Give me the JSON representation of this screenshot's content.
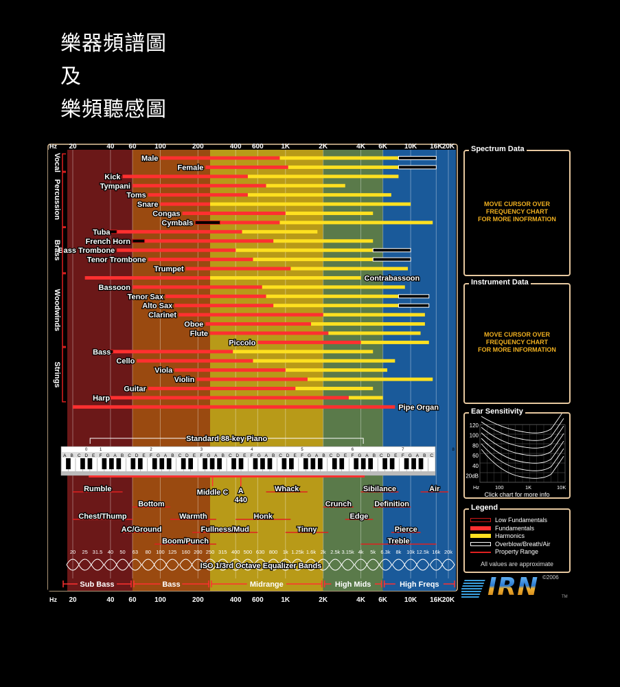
{
  "page_headings": [
    "樂器頻譜圖",
    "及",
    "樂頻聽感圖"
  ],
  "colors": {
    "low_fundamental": "#d01818",
    "fundamental": "#ff3030",
    "harmonic": "#ffe020",
    "overblow": "#000000",
    "property_range": "#e02020",
    "band_sub_bass": "#6b1818",
    "band_bass": "#9a4a10",
    "band_midrange": "#b89a18",
    "band_high_mids": "#5a7a4a",
    "band_high_freqs": "#1a5a9a",
    "panel_border": "#e8c9a0",
    "panel_msg": "#f0b020"
  },
  "chart_data": {
    "type": "bar",
    "title": "",
    "x_scale": "log",
    "xlabel": "Hz",
    "xlim": [
      20,
      20000
    ],
    "top_ticks": [
      {
        "hz": 20,
        "label": "20"
      },
      {
        "hz": 40,
        "label": "40"
      },
      {
        "hz": 60,
        "label": "60"
      },
      {
        "hz": 100,
        "label": "100"
      },
      {
        "hz": 200,
        "label": "200"
      },
      {
        "hz": 400,
        "label": "400"
      },
      {
        "hz": 600,
        "label": "600"
      },
      {
        "hz": 1000,
        "label": "1K"
      },
      {
        "hz": 2000,
        "label": "2K"
      },
      {
        "hz": 4000,
        "label": "4K"
      },
      {
        "hz": 6000,
        "label": "6K"
      },
      {
        "hz": 10000,
        "label": "10K"
      },
      {
        "hz": 16000,
        "label": "16K"
      },
      {
        "hz": 20000,
        "label": "20K"
      }
    ],
    "hz_label": "Hz",
    "groups": [
      {
        "name": "Vocal",
        "from": 0,
        "to": 1
      },
      {
        "name": "Percussion",
        "from": 2,
        "to": 7
      },
      {
        "name": "Brass",
        "from": 8,
        "to": 12
      },
      {
        "name": "Woodwinds",
        "from": 13,
        "to": 20
      },
      {
        "name": "Strings",
        "from": 21,
        "to": 26
      }
    ],
    "instruments": [
      {
        "name": "Male",
        "fund": [
          100,
          900
        ],
        "harm": [
          900,
          8000
        ],
        "over": [
          8000,
          16000
        ]
      },
      {
        "name": "Female",
        "fund": [
          230,
          1050
        ],
        "harm": [
          1050,
          8000
        ],
        "over": [
          8000,
          16000
        ]
      },
      {
        "name": "Kick",
        "fund": [
          50,
          500
        ],
        "harm": [
          500,
          8000
        ]
      },
      {
        "name": "Tympani",
        "fund": [
          60,
          700
        ],
        "harm": [
          700,
          3000
        ]
      },
      {
        "name": "Toms",
        "fund": [
          80,
          500
        ],
        "harm": [
          500,
          7000
        ]
      },
      {
        "name": "Snare",
        "fund": [
          100,
          250
        ],
        "harm": [
          250,
          10000
        ]
      },
      {
        "name": "Congas",
        "fund": [
          150,
          1000
        ],
        "harm": [
          1000,
          5000
        ]
      },
      {
        "name": "Cymbals",
        "low": [
          190,
          300
        ],
        "fund": [
          300,
          900
        ],
        "harm": [
          900,
          15000
        ]
      },
      {
        "name": "Tuba",
        "low": [
          30,
          45
        ],
        "fund": [
          45,
          450
        ],
        "harm": [
          450,
          1800
        ]
      },
      {
        "name": "French Horn",
        "low": [
          60,
          75
        ],
        "fund": [
          75,
          800
        ],
        "harm": [
          800,
          5000
        ]
      },
      {
        "name": "Bass Trombone",
        "fund": [
          45,
          400
        ],
        "harm": [
          400,
          5000
        ],
        "over": [
          5000,
          10000
        ]
      },
      {
        "name": "Tenor Trombone",
        "fund": [
          80,
          550
        ],
        "harm": [
          550,
          5000
        ],
        "over": [
          5000,
          10000
        ]
      },
      {
        "name": "Trumpet",
        "fund": [
          160,
          1100
        ],
        "harm": [
          1100,
          9500
        ]
      },
      {
        "name": "Contrabassoon",
        "fund": [
          25,
          250
        ],
        "harm": [
          250,
          4000
        ]
      },
      {
        "name": "Bassoon",
        "fund": [
          60,
          650
        ],
        "harm": [
          650,
          9000
        ]
      },
      {
        "name": "Tenor Sax",
        "fund": [
          110,
          700
        ],
        "harm": [
          700,
          8000
        ],
        "over": [
          8000,
          14000
        ]
      },
      {
        "name": "Alto Sax",
        "fund": [
          130,
          800
        ],
        "harm": [
          800,
          8000
        ],
        "over": [
          8000,
          14000
        ]
      },
      {
        "name": "Clarinet",
        "fund": [
          140,
          2000
        ],
        "harm": [
          2000,
          13000
        ]
      },
      {
        "name": "Oboe",
        "fund": [
          230,
          1600
        ],
        "harm": [
          1600,
          13000
        ]
      },
      {
        "name": "Flute",
        "fund": [
          250,
          2200
        ],
        "harm": [
          2200,
          12000
        ]
      },
      {
        "name": "Piccolo",
        "fund": [
          600,
          4000
        ],
        "harm": [
          4000,
          14000
        ]
      },
      {
        "name": "Bass",
        "low": [
          30,
          42
        ],
        "fund": [
          42,
          380
        ],
        "harm": [
          380,
          5000
        ]
      },
      {
        "name": "Cello",
        "fund": [
          65,
          550
        ],
        "harm": [
          550,
          7500
        ]
      },
      {
        "name": "Viola",
        "fund": [
          130,
          1000
        ],
        "harm": [
          1000,
          6500
        ]
      },
      {
        "name": "Violin",
        "fund": [
          195,
          1500
        ],
        "harm": [
          1500,
          15000
        ]
      },
      {
        "name": "Guitar",
        "fund": [
          80,
          1200
        ],
        "harm": [
          1200,
          5000
        ]
      },
      {
        "name": "Harp",
        "fund": [
          30,
          3200
        ],
        "harm": [
          3200,
          6000
        ]
      },
      {
        "name": "Pipe Organ",
        "fund": [
          20,
          7500
        ]
      }
    ],
    "piano": {
      "label": "Standard 88-key Piano",
      "range": [
        27.5,
        4186
      ],
      "octave_numbers": [
        "0",
        "1",
        "2",
        "3",
        "4",
        "5",
        "6",
        "7",
        "8"
      ],
      "note_letters": [
        "C",
        "D",
        "E",
        "F",
        "G",
        "A",
        "B"
      ]
    },
    "markers": [
      {
        "label": "Middle C",
        "hz": 261.6
      },
      {
        "label": "A",
        "sub": "440",
        "hz": 440
      }
    ],
    "perception": [
      {
        "label": "Rumble",
        "range": [
          20,
          50
        ],
        "row": 0
      },
      {
        "label": "Chest/Thump",
        "range": [
          20,
          60
        ],
        "row": 2
      },
      {
        "label": "Bottom",
        "range": [
          60,
          120
        ],
        "row": 1
      },
      {
        "label": "AC/Ground",
        "range": [
          50,
          100
        ],
        "row": 3
      },
      {
        "label": "Warmth",
        "range": [
          120,
          280
        ],
        "row": 2
      },
      {
        "label": "Boom/Punch",
        "range": [
          90,
          280
        ],
        "row": 4
      },
      {
        "label": "Fullness/Mud",
        "range": [
          180,
          600
        ],
        "row": 3
      },
      {
        "label": "Honk",
        "range": [
          400,
          1100
        ],
        "row": 2
      },
      {
        "label": "Whack",
        "range": [
          700,
          1500
        ],
        "row": 0
      },
      {
        "label": "Tinny",
        "range": [
          1000,
          2200
        ],
        "row": 3
      },
      {
        "label": "Crunch",
        "range": [
          2000,
          3500
        ],
        "row": 1
      },
      {
        "label": "Edge",
        "range": [
          3000,
          5000
        ],
        "row": 2
      },
      {
        "label": "Sibilance",
        "range": [
          4000,
          8000
        ],
        "row": 0
      },
      {
        "label": "Definition",
        "range": [
          5000,
          10000
        ],
        "row": 1
      },
      {
        "label": "Pierce",
        "range": [
          7000,
          12000
        ],
        "row": 3
      },
      {
        "label": "Treble",
        "range": [
          4000,
          16000
        ],
        "row": 4
      },
      {
        "label": "Air",
        "range": [
          12000,
          20000
        ],
        "row": 0
      }
    ],
    "iso_label": "ISO 1/3rd Octave Equalizer Bands",
    "iso_bands": [
      {
        "hz": 20,
        "label": "20"
      },
      {
        "hz": 25,
        "label": "25"
      },
      {
        "hz": 31.5,
        "label": "31.5"
      },
      {
        "hz": 40,
        "label": "40"
      },
      {
        "hz": 50,
        "label": "50"
      },
      {
        "hz": 63,
        "label": "63"
      },
      {
        "hz": 80,
        "label": "80"
      },
      {
        "hz": 100,
        "label": "100"
      },
      {
        "hz": 125,
        "label": "125"
      },
      {
        "hz": 160,
        "label": "160"
      },
      {
        "hz": 200,
        "label": "200"
      },
      {
        "hz": 250,
        "label": "250"
      },
      {
        "hz": 315,
        "label": "315"
      },
      {
        "hz": 400,
        "label": "400"
      },
      {
        "hz": 500,
        "label": "500"
      },
      {
        "hz": 630,
        "label": "630"
      },
      {
        "hz": 800,
        "label": "800"
      },
      {
        "hz": 1000,
        "label": "1k"
      },
      {
        "hz": 1250,
        "label": "1.25k"
      },
      {
        "hz": 1600,
        "label": "1.6k"
      },
      {
        "hz": 2000,
        "label": "2k"
      },
      {
        "hz": 2500,
        "label": "2.5k"
      },
      {
        "hz": 3150,
        "label": "3.15k"
      },
      {
        "hz": 4000,
        "label": "4k"
      },
      {
        "hz": 5000,
        "label": "5k"
      },
      {
        "hz": 6300,
        "label": "6.3k"
      },
      {
        "hz": 8000,
        "label": "8k"
      },
      {
        "hz": 10000,
        "label": "10k"
      },
      {
        "hz": 12500,
        "label": "12.5k"
      },
      {
        "hz": 16000,
        "label": "16k"
      },
      {
        "hz": 20000,
        "label": "20k"
      }
    ],
    "bands": [
      {
        "label": "Sub Bass",
        "range": [
          20,
          60
        ],
        "color": "#6b1818"
      },
      {
        "label": "Bass",
        "range": [
          60,
          250
        ],
        "color": "#9a4a10"
      },
      {
        "label": "Midrange",
        "range": [
          250,
          2000
        ],
        "color": "#b89a18"
      },
      {
        "label": "High Mids",
        "range": [
          2000,
          6000
        ],
        "color": "#5a7a4a"
      },
      {
        "label": "High Freqs",
        "range": [
          6000,
          20000
        ],
        "color": "#1a5a9a"
      }
    ],
    "legend": [
      {
        "label": "Low Fundamentals",
        "kind": "low"
      },
      {
        "label": "Fundamentals",
        "kind": "fund"
      },
      {
        "label": "Harmonics",
        "kind": "harm"
      },
      {
        "label": "Overblow/Breath/Air",
        "kind": "over"
      },
      {
        "label": "Property Range",
        "kind": "prop"
      }
    ]
  },
  "ear_sensitivity": {
    "title": "Ear Sensitivity",
    "y_ticks": [
      "120",
      "100",
      "80",
      "60",
      "40",
      "20dB"
    ],
    "x_ticks": [
      "Hz",
      "100",
      "1K",
      "10K"
    ],
    "caption": "Click chart for more info"
  },
  "spectrum_panel": {
    "title": "Spectrum Data",
    "message": [
      "MOVE CURSOR OVER",
      "FREQUENCY CHART",
      "FOR MORE INOFRMATION"
    ]
  },
  "instrument_panel": {
    "title": "Instrument Data",
    "message": [
      "MOVE CURSOR OVER",
      "FREQUENCY CHART",
      "FOR MORE INFORMATION"
    ]
  },
  "legend_panel": {
    "title": "Legend",
    "note": "All values are approximate"
  },
  "copyright": "©2006",
  "logo": "IRN",
  "trademark": "TM"
}
